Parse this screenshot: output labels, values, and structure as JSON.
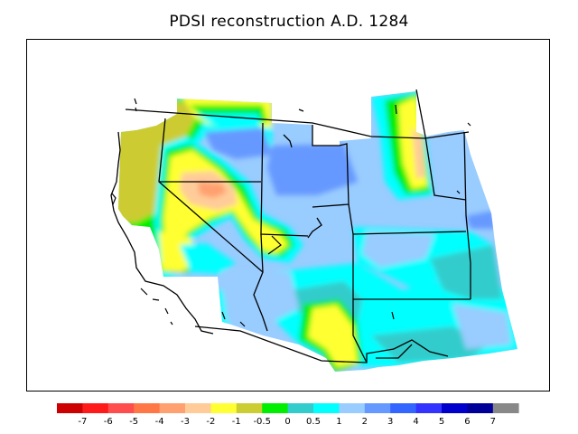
{
  "title": "PDSI reconstruction A.D. 1284",
  "legend": {
    "labels": [
      "-7",
      "-6",
      "-5",
      "-4",
      "-3",
      "-2",
      "-1",
      "-0.5",
      "0",
      "0.5",
      "1",
      "2",
      "3",
      "4",
      "5",
      "6",
      "7"
    ],
    "colors": [
      "#cc0000",
      "#ff1a1a",
      "#ff4d4d",
      "#ff7744",
      "#ffa070",
      "#ffcc99",
      "#ffff33",
      "#cccc33",
      "#00ee00",
      "#33cccc",
      "#00ffff",
      "#99ccff",
      "#6699ff",
      "#3366ff",
      "#3333ff",
      "#0000cc",
      "#000099",
      "#888888"
    ]
  },
  "map": {
    "region": "Southwestern United States",
    "year": "1284",
    "variable": "PDSI",
    "colors": {
      "wet_blue_light": "#99ccff",
      "wet_blue_mid": "#6699ff",
      "cyan": "#00ffff",
      "teal": "#33cccc",
      "green": "#00ee00",
      "olive": "#cccc33",
      "yellow": "#ffff33",
      "peach": "#ffcc99",
      "salmon": "#ffa070",
      "boundary": "#000000"
    }
  }
}
